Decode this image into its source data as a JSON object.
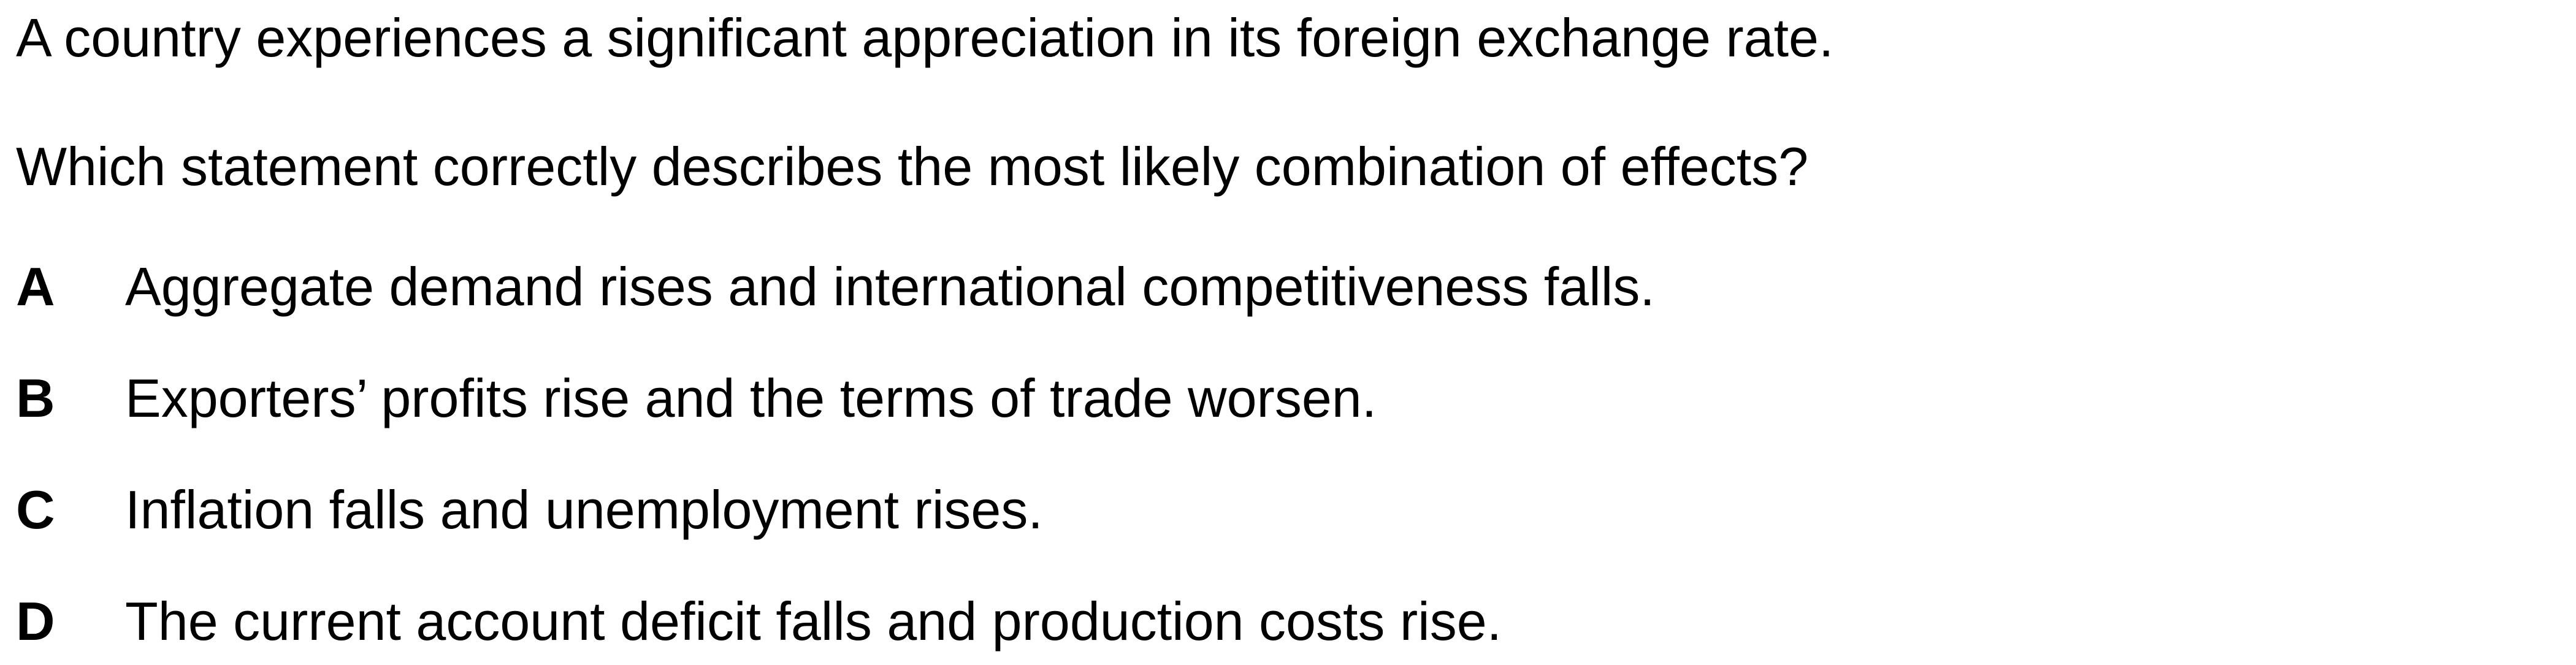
{
  "question": {
    "stem_line_1": "A country experiences a significant appreciation in its foreign exchange rate.",
    "stem_line_2": "Which statement correctly describes the most likely combination of effects?",
    "options": [
      {
        "letter": "A",
        "text": "Aggregate demand rises and international competitiveness falls."
      },
      {
        "letter": "B",
        "text": "Exporters’ profits rise and the terms of trade worsen."
      },
      {
        "letter": "C",
        "text": "Inflation falls and unemployment rises."
      },
      {
        "letter": "D",
        "text": "The current account deficit falls and production costs rise."
      }
    ]
  }
}
